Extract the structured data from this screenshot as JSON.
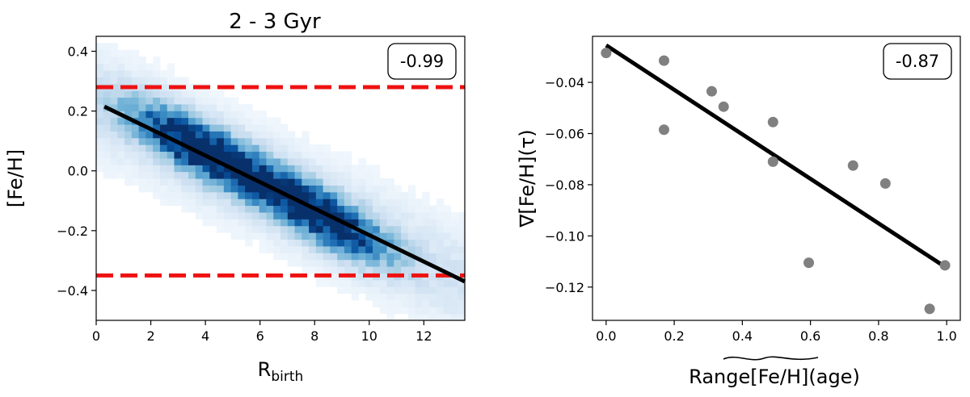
{
  "chart_data": [
    {
      "type": "heatmap",
      "title": "2 - 3 Gyr",
      "xlabel": "R",
      "xlabel_sub": "birth",
      "ylabel": "[Fe/H]",
      "xlim": [
        0,
        13.5
      ],
      "ylim": [
        -0.5,
        0.45
      ],
      "xticks": [
        0,
        2,
        4,
        6,
        8,
        10,
        12
      ],
      "yticks": [
        -0.4,
        -0.2,
        0.0,
        0.2,
        0.4
      ],
      "xtick_labels": [
        "0",
        "2",
        "4",
        "6",
        "8",
        "10",
        "12"
      ],
      "ytick_labels": [
        "−0.4",
        "−0.2",
        "0.0",
        "0.2",
        "0.4"
      ],
      "correlation_label": "-0.99",
      "fit_line": {
        "x": [
          0.3,
          13.5
        ],
        "y": [
          0.215,
          -0.37
        ]
      },
      "hlines": [
        0.28,
        -0.35
      ],
      "hline_color": "#ee1111",
      "density_ridges": [
        {
          "center": [
            3.5,
            0.09
          ],
          "spread": [
            1.6,
            0.06
          ],
          "weight": 1.0
        },
        {
          "center": [
            8.6,
            -0.17
          ],
          "spread": [
            1.5,
            0.06
          ],
          "weight": 0.95
        },
        {
          "center": [
            6.0,
            -0.03
          ],
          "spread": [
            1.6,
            0.06
          ],
          "weight": 0.6
        }
      ],
      "colormap": "Blues"
    },
    {
      "type": "scatter",
      "title": "",
      "xlabel": "Range[Fe/H](age)",
      "xlabel_parts": {
        "pre": "Range",
        "tilde": "[Fe/H]",
        "post": "(age)"
      },
      "ylabel": "∇[Fe/H](τ)",
      "xlim": [
        -0.04,
        1.04
      ],
      "ylim": [
        -0.133,
        -0.022
      ],
      "xticks": [
        0.0,
        0.2,
        0.4,
        0.6,
        0.8,
        1.0
      ],
      "yticks": [
        -0.12,
        -0.1,
        -0.08,
        -0.06,
        -0.04
      ],
      "xtick_labels": [
        "0.0",
        "0.2",
        "0.4",
        "0.6",
        "0.8",
        "1.0"
      ],
      "ytick_labels": [
        "−0.12",
        "−0.10",
        "−0.08",
        "−0.06",
        "−0.04"
      ],
      "correlation_label": "-0.87",
      "fit_line": {
        "x": [
          0.0,
          1.0
        ],
        "y": [
          -0.0255,
          -0.1125
        ]
      },
      "points": {
        "x": [
          0.0,
          0.17,
          0.17,
          0.31,
          0.345,
          0.49,
          0.49,
          0.595,
          0.725,
          0.82,
          0.95,
          0.995
        ],
        "y": [
          -0.0285,
          -0.0315,
          -0.0585,
          -0.0435,
          -0.0495,
          -0.0555,
          -0.071,
          -0.1105,
          -0.0725,
          -0.0795,
          -0.1285,
          -0.1115
        ]
      },
      "point_color": "#808080"
    }
  ]
}
